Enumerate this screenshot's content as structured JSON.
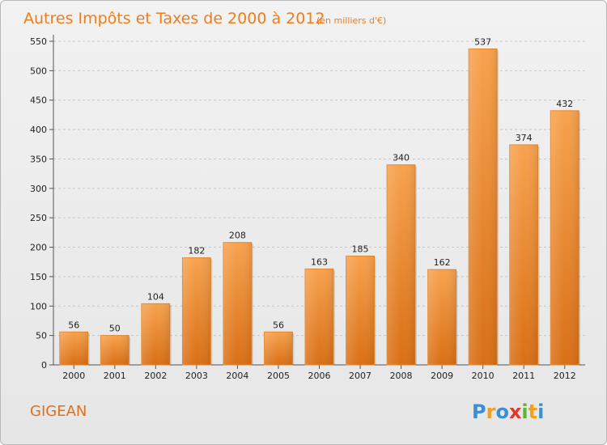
{
  "title": "Autres Impôts et Taxes de 2000 à 2012",
  "unit": "(en milliers d'€)",
  "commune": "GIGEAN",
  "logo": {
    "letters": [
      {
        "char": "P",
        "color": "#3b8fd6"
      },
      {
        "char": "r",
        "color": "#f0a020"
      },
      {
        "char": "o",
        "color": "#3b8fd6"
      },
      {
        "char": "x",
        "color": "#e23a2c"
      },
      {
        "char": "i",
        "color": "#5bb534"
      },
      {
        "char": "t",
        "color": "#f0a020"
      },
      {
        "char": "i",
        "color": "#3b8fd6"
      }
    ]
  },
  "chart_data": {
    "type": "bar",
    "categories": [
      "2000",
      "2001",
      "2002",
      "2003",
      "2004",
      "2005",
      "2006",
      "2007",
      "2008",
      "2009",
      "2010",
      "2011",
      "2012"
    ],
    "values": [
      56,
      50,
      104,
      182,
      208,
      56,
      163,
      185,
      340,
      162,
      537,
      374,
      432
    ],
    "ylim": [
      0,
      550
    ],
    "yticks": [
      0,
      50,
      100,
      150,
      200,
      250,
      300,
      350,
      400,
      450,
      500,
      550
    ],
    "grid": true,
    "bar_color": "#f08c2c"
  }
}
